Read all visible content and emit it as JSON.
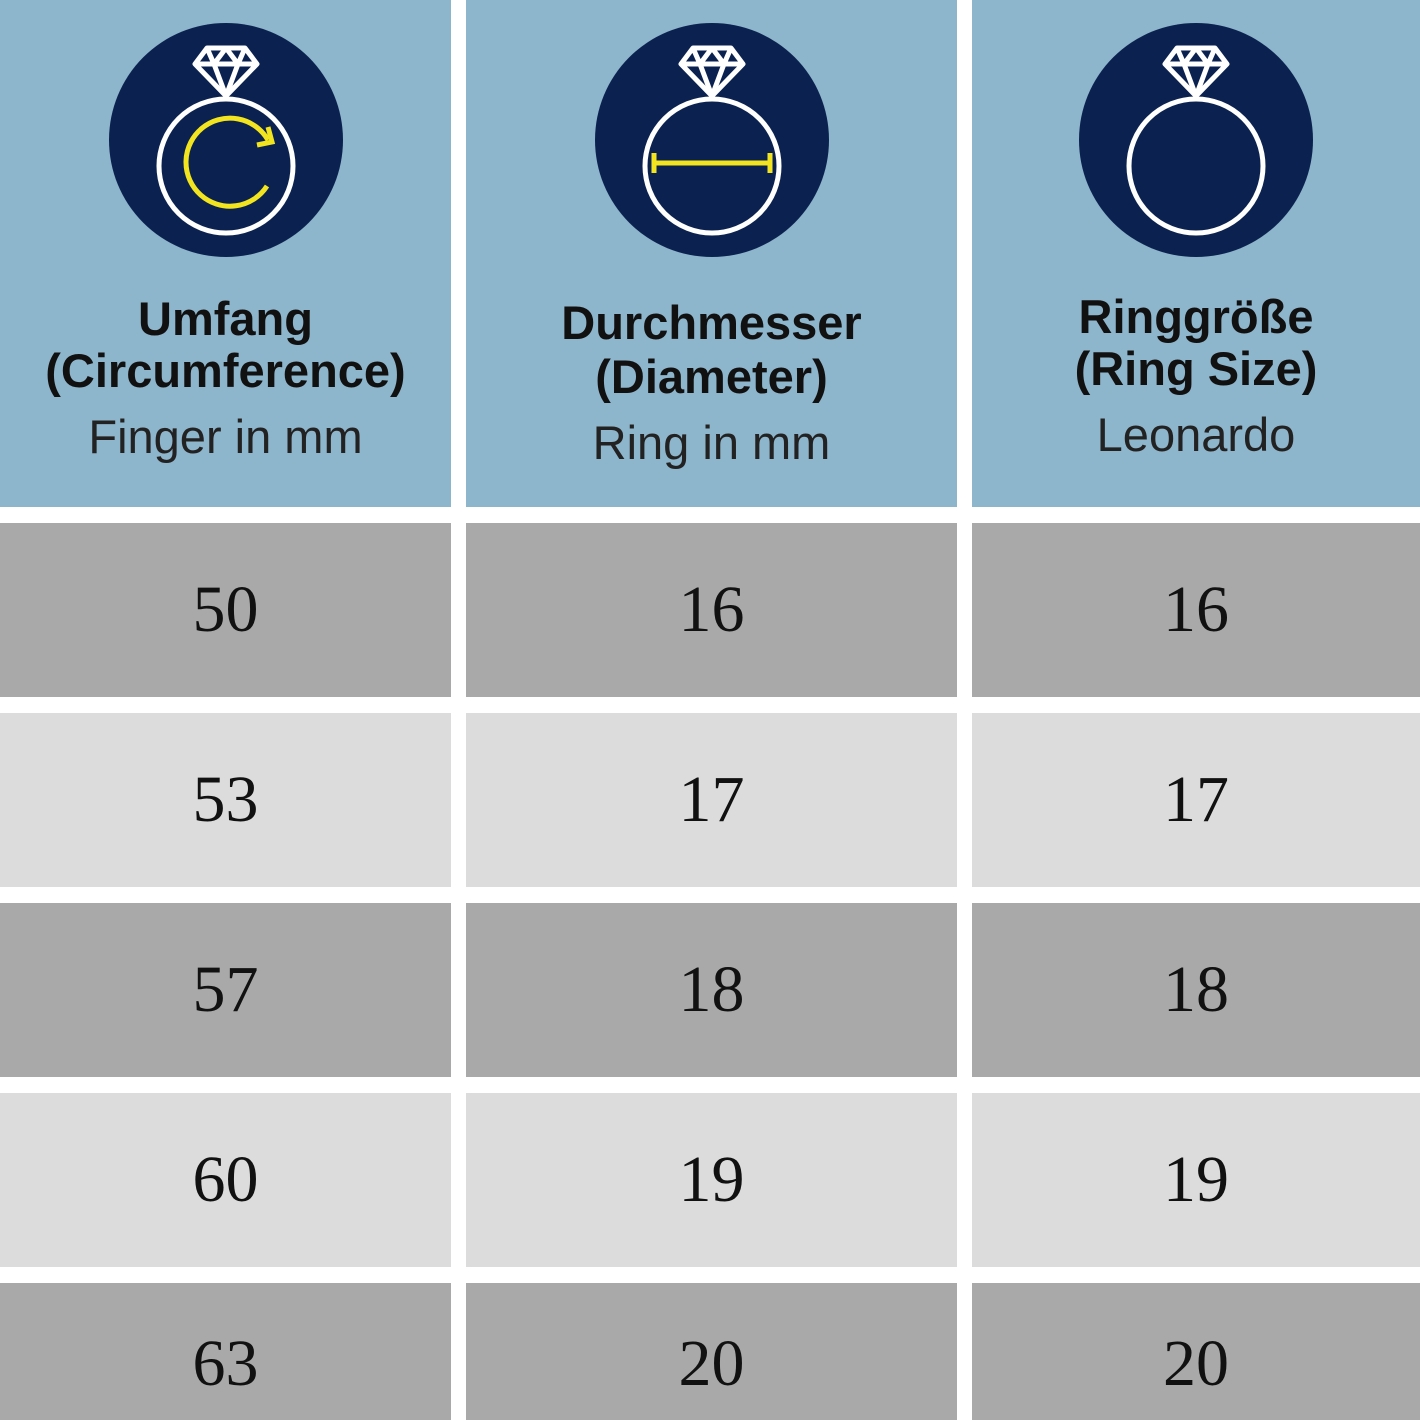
{
  "colors": {
    "header": "#8db5cb",
    "icon_circle": "#0b2250",
    "accent": "#f2e51f",
    "row_dark": "#a9a9a9",
    "row_light": "#dcdcdc"
  },
  "columns": [
    {
      "title1": "Umfang",
      "title2": "(Circumference)",
      "sub": "Finger in mm",
      "icon": "ring-rotate-icon"
    },
    {
      "title1": "Durchmesser",
      "title2": "(Diameter)",
      "sub": "Ring in mm",
      "icon": "ring-diameter-icon"
    },
    {
      "title1": "Ringgröße",
      "title2": "(Ring Size)",
      "sub": "Leonardo",
      "icon": "ring-icon"
    }
  ],
  "rows": [
    [
      "50",
      "16",
      "16"
    ],
    [
      "53",
      "17",
      "17"
    ],
    [
      "57",
      "18",
      "18"
    ],
    [
      "60",
      "19",
      "19"
    ],
    [
      "63",
      "20",
      "20"
    ]
  ]
}
